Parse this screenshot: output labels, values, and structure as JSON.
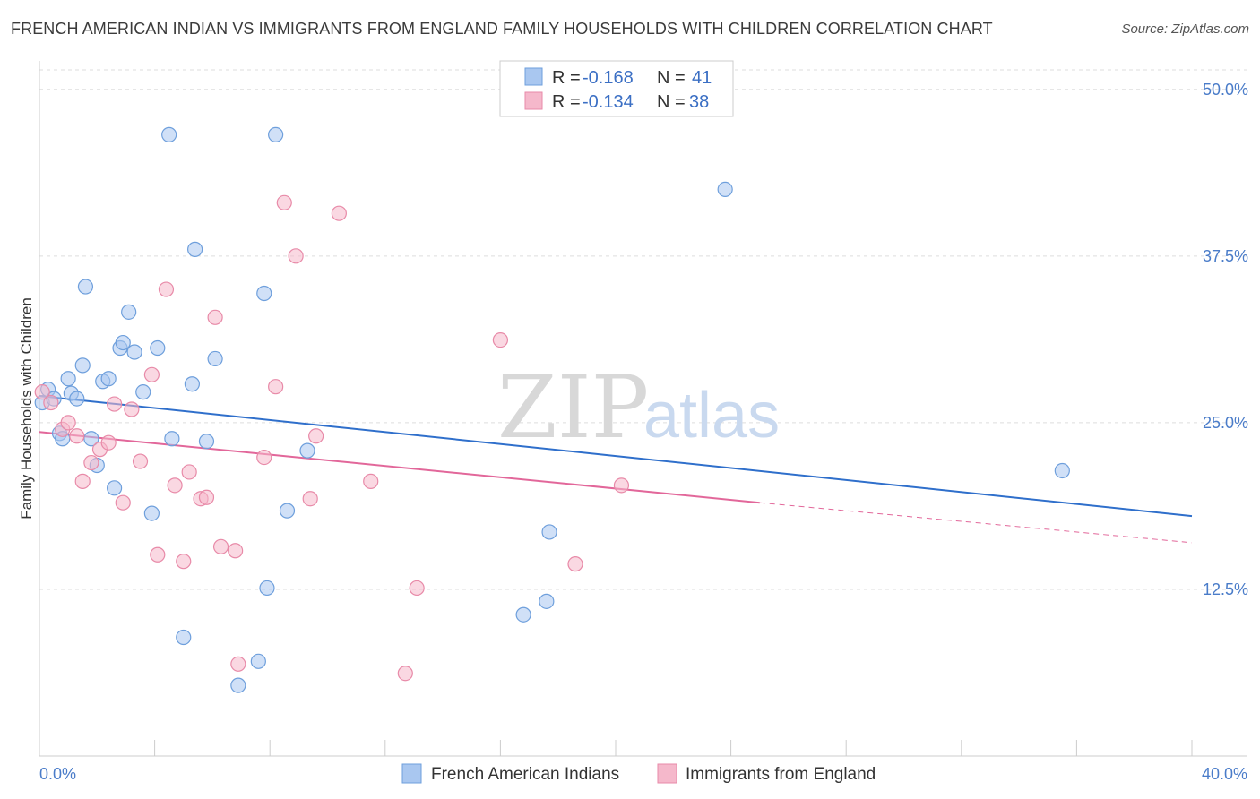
{
  "title": "FRENCH AMERICAN INDIAN VS IMMIGRANTS FROM ENGLAND FAMILY HOUSEHOLDS WITH CHILDREN CORRELATION CHART",
  "source": "Source: ZipAtlas.com",
  "watermark": {
    "zip": "ZIP",
    "atlas": "atlas"
  },
  "legend": {
    "rows": [
      {
        "r_label": "R = ",
        "r_value": "-0.168",
        "n_label": "N = ",
        "n_value": "41"
      },
      {
        "r_label": "R = ",
        "r_value": "-0.134",
        "n_label": "N = ",
        "n_value": "38"
      }
    ]
  },
  "colors": {
    "blue_fill": "#a9c7f0",
    "blue_stroke": "#6e9fdc",
    "blue_line": "#2f6fcb",
    "pink_fill": "#f5b8cb",
    "pink_stroke": "#e88aa8",
    "pink_line": "#e2679a",
    "grid": "#dddddd",
    "axis_text": "#4a7cc9"
  },
  "chart_data": {
    "type": "scatter",
    "title": "FRENCH AMERICAN INDIAN VS IMMIGRANTS FROM ENGLAND FAMILY HOUSEHOLDS WITH CHILDREN CORRELATION CHART",
    "xlabel": "",
    "ylabel": "Family Households with Children",
    "xlim": [
      0,
      40
    ],
    "ylim": [
      0,
      52
    ],
    "x_tick_labels": [
      "0.0%",
      "40.0%"
    ],
    "y_ticks": [
      12.5,
      25.0,
      37.5,
      50.0
    ],
    "y_tick_labels": [
      "12.5%",
      "25.0%",
      "37.5%",
      "50.0%"
    ],
    "grid": true,
    "legend_position": "top-center",
    "series": [
      {
        "name": "French American Indians",
        "color": "blue",
        "trend": {
          "x": [
            0,
            40
          ],
          "y": [
            27.0,
            18.0
          ]
        },
        "points": [
          [
            0.1,
            26.5
          ],
          [
            0.3,
            27.5
          ],
          [
            0.5,
            26.8
          ],
          [
            0.7,
            24.2
          ],
          [
            0.8,
            23.8
          ],
          [
            1.0,
            28.3
          ],
          [
            1.1,
            27.2
          ],
          [
            1.3,
            26.8
          ],
          [
            1.5,
            29.3
          ],
          [
            1.6,
            35.2
          ],
          [
            1.8,
            23.8
          ],
          [
            2.0,
            21.8
          ],
          [
            2.2,
            28.1
          ],
          [
            2.4,
            28.3
          ],
          [
            2.6,
            20.1
          ],
          [
            2.8,
            30.6
          ],
          [
            2.9,
            31.0
          ],
          [
            3.1,
            33.3
          ],
          [
            3.3,
            30.3
          ],
          [
            3.6,
            27.3
          ],
          [
            3.9,
            18.2
          ],
          [
            4.1,
            30.6
          ],
          [
            4.5,
            46.6
          ],
          [
            4.6,
            23.8
          ],
          [
            5.0,
            8.9
          ],
          [
            5.3,
            27.9
          ],
          [
            5.4,
            38.0
          ],
          [
            5.8,
            23.6
          ],
          [
            6.1,
            29.8
          ],
          [
            6.9,
            5.3
          ],
          [
            7.6,
            7.1
          ],
          [
            7.8,
            34.7
          ],
          [
            7.9,
            12.6
          ],
          [
            8.2,
            46.6
          ],
          [
            8.6,
            18.4
          ],
          [
            9.3,
            22.9
          ],
          [
            16.8,
            10.6
          ],
          [
            17.6,
            11.6
          ],
          [
            17.7,
            16.8
          ],
          [
            23.8,
            42.5
          ],
          [
            35.5,
            21.4
          ]
        ]
      },
      {
        "name": "Immigrants from England",
        "color": "pink",
        "trend": {
          "x": [
            0,
            25
          ],
          "y": [
            24.3,
            19.0
          ],
          "dashed_to": {
            "x": 40,
            "y": 16.0
          }
        },
        "points": [
          [
            0.1,
            27.3
          ],
          [
            0.4,
            26.5
          ],
          [
            0.8,
            24.5
          ],
          [
            1.0,
            25.0
          ],
          [
            1.3,
            24.0
          ],
          [
            1.5,
            20.6
          ],
          [
            1.8,
            22.0
          ],
          [
            2.1,
            23.0
          ],
          [
            2.4,
            23.5
          ],
          [
            2.6,
            26.4
          ],
          [
            2.9,
            19.0
          ],
          [
            3.2,
            26.0
          ],
          [
            3.5,
            22.1
          ],
          [
            3.9,
            28.6
          ],
          [
            4.1,
            15.1
          ],
          [
            4.4,
            35.0
          ],
          [
            4.7,
            20.3
          ],
          [
            5.0,
            14.6
          ],
          [
            5.2,
            21.3
          ],
          [
            5.6,
            19.3
          ],
          [
            5.8,
            19.4
          ],
          [
            6.1,
            32.9
          ],
          [
            6.3,
            15.7
          ],
          [
            6.8,
            15.4
          ],
          [
            6.9,
            6.9
          ],
          [
            7.8,
            22.4
          ],
          [
            8.2,
            27.7
          ],
          [
            8.5,
            41.5
          ],
          [
            8.9,
            37.5
          ],
          [
            9.4,
            19.3
          ],
          [
            9.6,
            24.0
          ],
          [
            10.4,
            40.7
          ],
          [
            11.5,
            20.6
          ],
          [
            12.7,
            6.2
          ],
          [
            13.1,
            12.6
          ],
          [
            16.0,
            31.2
          ],
          [
            18.6,
            14.4
          ],
          [
            20.2,
            20.3
          ]
        ]
      }
    ]
  }
}
